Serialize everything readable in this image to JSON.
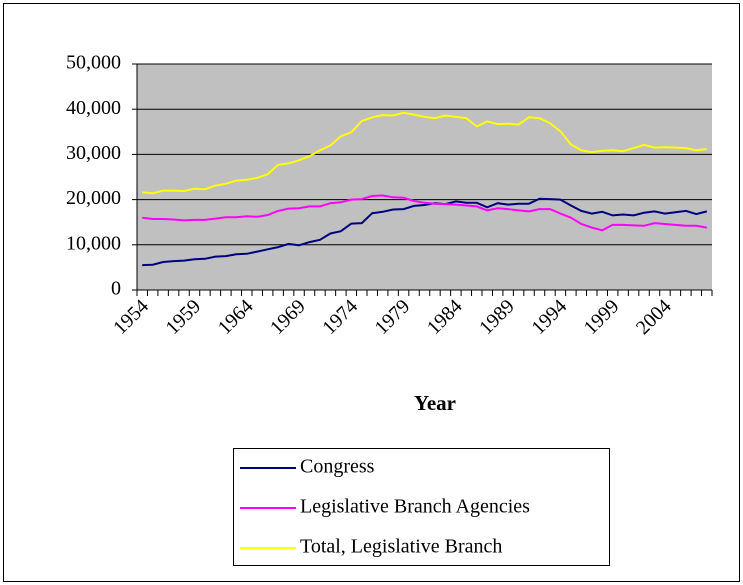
{
  "chart_data": {
    "type": "line",
    "x_label": "Year",
    "categories": [
      "1954",
      null,
      null,
      null,
      null,
      "1959",
      null,
      null,
      null,
      null,
      "1964",
      null,
      null,
      null,
      null,
      "1969",
      null,
      null,
      null,
      null,
      "1974",
      null,
      null,
      null,
      null,
      "1979",
      null,
      null,
      null,
      null,
      "1984",
      null,
      null,
      null,
      null,
      "1989",
      null,
      null,
      null,
      null,
      "1994",
      null,
      null,
      null,
      null,
      "1999",
      null,
      null,
      null,
      null,
      "2004",
      null,
      null,
      null,
      null
    ],
    "series": [
      {
        "name": "Congress",
        "color": "#000080",
        "values": [
          5500,
          5600,
          6200,
          6400,
          6500,
          6800,
          6900,
          7400,
          7500,
          7900,
          8000,
          8500,
          9000,
          9500,
          10200,
          9900,
          10600,
          11100,
          12500,
          13000,
          14700,
          14800,
          17000,
          17300,
          17800,
          17900,
          18600,
          18800,
          19200,
          19000,
          19600,
          19300,
          19300,
          18300,
          19200,
          18900,
          19100,
          19100,
          20200,
          20100,
          20000,
          18700,
          17500,
          16900,
          17300,
          16500,
          16700,
          16500,
          17100,
          17400,
          16900,
          17200,
          17500,
          16800,
          17400
        ]
      },
      {
        "name": "Legislative Branch Agencies",
        "color": "#ff00ff",
        "values": [
          16000,
          15700,
          15700,
          15600,
          15400,
          15500,
          15500,
          15800,
          16100,
          16100,
          16300,
          16200,
          16600,
          17500,
          18000,
          18100,
          18500,
          18500,
          19200,
          19400,
          20000,
          20100,
          20800,
          20900,
          20500,
          20400,
          19700,
          19300,
          19100,
          19000,
          18900,
          18700,
          18500,
          17600,
          18100,
          17900,
          17600,
          17400,
          17900,
          17900,
          16900,
          16000,
          14600,
          13800,
          13200,
          14400,
          14400,
          14300,
          14200,
          14800,
          14600,
          14400,
          14200,
          14200,
          13800
        ]
      },
      {
        "name": "Total, Legislative Branch",
        "color": "#ffff00",
        "values": [
          21600,
          21400,
          22000,
          22000,
          21900,
          22400,
          22300,
          23100,
          23500,
          24200,
          24400,
          24800,
          25600,
          27700,
          28000,
          28700,
          29600,
          30900,
          32000,
          34000,
          34900,
          37400,
          38200,
          38700,
          38600,
          39200,
          38800,
          38300,
          38000,
          38600,
          38300,
          38000,
          36200,
          37300,
          36700,
          36800,
          36600,
          38200,
          38000,
          36900,
          35100,
          32200,
          30900,
          30500,
          30800,
          30900,
          30700,
          31400,
          32100,
          31500,
          31600,
          31500,
          31400,
          30900,
          31200
        ]
      }
    ],
    "ylim": [
      0,
      50000
    ],
    "yticks": [
      0,
      {
        "value": 10000,
        "label": "10,000"
      },
      {
        "value": 20000,
        "label": "20,000"
      },
      {
        "value": 30000,
        "label": "30,000"
      },
      {
        "value": 40000,
        "label": "40,000"
      },
      {
        "value": 50000,
        "label": "50,000"
      }
    ],
    "grid": true,
    "plot_background": "#c0c0c0",
    "legend_position": "bottom"
  }
}
